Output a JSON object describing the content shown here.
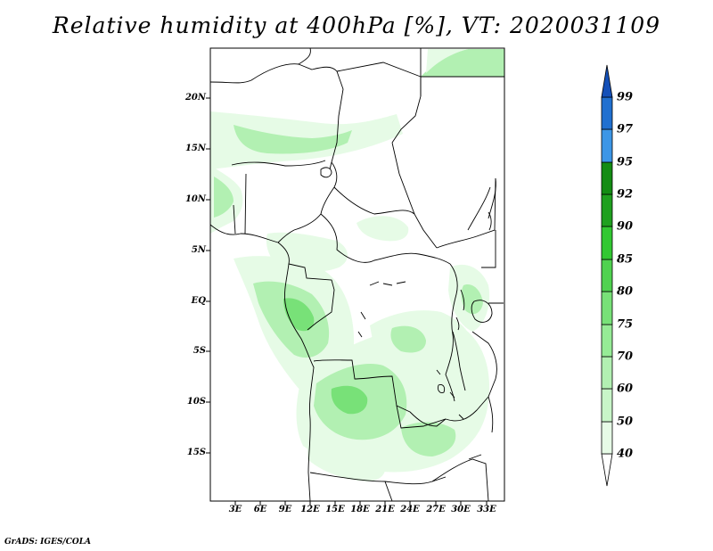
{
  "title": "Relative humidity at 400hPa [%], VT: 2020031109",
  "credit": "GrADS: IGES/COLA",
  "lat_labels": [
    "20N",
    "15N",
    "10N",
    "5N",
    "EQ",
    "5S",
    "10S",
    "15S"
  ],
  "lon_labels": [
    "3E",
    "6E",
    "9E",
    "12E",
    "15E",
    "18E",
    "21E",
    "24E",
    "27E",
    "30E",
    "33E"
  ],
  "colorbar": {
    "levels": [
      "40",
      "50",
      "60",
      "70",
      "75",
      "80",
      "85",
      "90",
      "92",
      "95",
      "97",
      "99"
    ],
    "colors": [
      "#ffffff",
      "#e6fbe6",
      "#c8f5c8",
      "#b2f0b2",
      "#96eb96",
      "#78e178",
      "#50d250",
      "#32c832",
      "#1fa01f",
      "#138c13",
      "#3c96e6",
      "#2070d0",
      "#1450b8"
    ]
  },
  "palette": {
    "light": "#e6fbe6",
    "mid": "#b2f0b2",
    "medium": "#78e178",
    "strong": "#50d250"
  }
}
